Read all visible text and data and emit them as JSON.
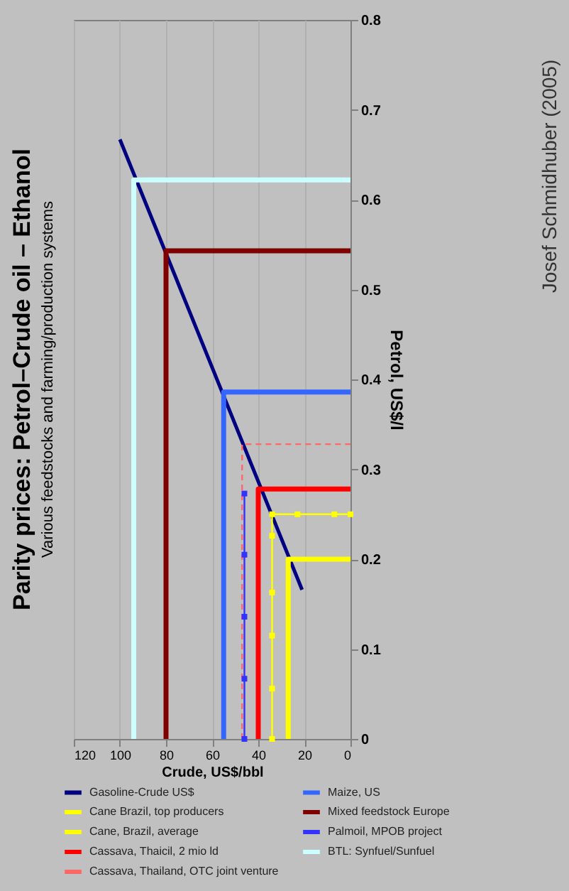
{
  "chart_data": {
    "type": "line",
    "title": "Parity prices: Petrol–Crude oil – Ethanol",
    "subtitle": "Various feedstocks and farming/production systems",
    "xlabel": "Crude, US$/bbl",
    "ylabel": "Petrol, US$/l",
    "xlim": [
      120,
      0
    ],
    "xticks": [
      120,
      100,
      80,
      60,
      40,
      20,
      0
    ],
    "ylim": [
      0,
      0.8
    ],
    "yticks": [
      0,
      0.1,
      0.2,
      0.3,
      0.4,
      0.5,
      0.6,
      0.7,
      0.8
    ],
    "grid": "x",
    "legend": "bottom",
    "annotations": [
      "Josef Schmidhuber (2005)"
    ],
    "series": [
      {
        "name": "Gasoline-Crude US$",
        "color": "#000080",
        "x": [
          21,
          100
        ],
        "values": [
          0.166,
          0.667
        ]
      },
      {
        "name": "Cane Brazil, top producers",
        "color": "#ffff00",
        "x": [
          27,
          27,
          0
        ],
        "values": [
          0,
          0.2,
          0.2
        ]
      },
      {
        "name": "Cane, Brazil, average",
        "color": "#ffff00",
        "marker": "square",
        "x": [
          34,
          34,
          34,
          34,
          34,
          34,
          23,
          7,
          0
        ],
        "values": [
          0,
          0.056,
          0.115,
          0.163,
          0.226,
          0.25,
          0.25,
          0.25,
          0.25
        ]
      },
      {
        "name": "Cassava, Thaicil, 2 mio ld",
        "color": "#ff0000",
        "x": [
          40,
          40,
          0
        ],
        "values": [
          0,
          0.278,
          0.278
        ]
      },
      {
        "name": "Cassava, Thailand, OTC joint venture",
        "color": "#ff6666",
        "line_style": "dashed",
        "x": [
          47,
          47,
          0
        ],
        "values": [
          0,
          0.328,
          0.328
        ]
      },
      {
        "name": "Maize, US",
        "color": "#3366ff",
        "x": [
          55,
          55,
          0
        ],
        "values": [
          0,
          0.386,
          0.386
        ]
      },
      {
        "name": "Mixed feedstock Europe",
        "color": "#800000",
        "x": [
          80,
          80,
          0
        ],
        "values": [
          0,
          0.543,
          0.543
        ]
      },
      {
        "name": "Palmoil, MPOB project",
        "color": "#3333ff",
        "marker": "square",
        "x": [
          46,
          46,
          46,
          46,
          46
        ],
        "values": [
          0,
          0.067,
          0.136,
          0.205,
          0.273
        ]
      },
      {
        "name": "BTL: Synfuel/Sunfuel",
        "color": "#ccffff",
        "x": [
          94,
          94,
          0
        ],
        "values": [
          0,
          0.622,
          0.622
        ]
      }
    ]
  }
}
